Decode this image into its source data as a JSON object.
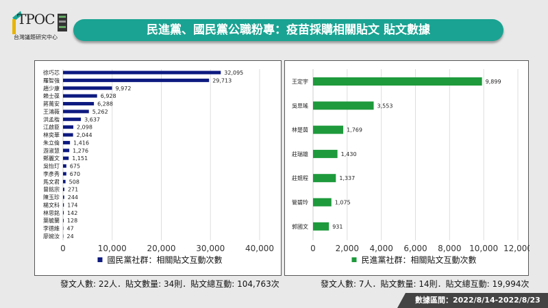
{
  "header": {
    "logo_text": "TPOC",
    "logo_sub": "台灣議題研究中心",
    "title": "民進黨、國民黨公職粉專：疫苗採購相關貼文 貼文數據"
  },
  "chart_data": [
    {
      "type": "bar",
      "orientation": "horizontal",
      "legend": "國民黨社群：相關貼文互動次數",
      "color": "#0d1a80",
      "xlim": [
        0,
        40000
      ],
      "xticks": [
        0,
        10000,
        20000,
        30000,
        40000
      ],
      "xtick_labels": [
        "0",
        "10,000",
        "20,000",
        "30,000",
        "40,000"
      ],
      "grid": true,
      "legend_position": "bottom",
      "categories": [
        "徐巧芯",
        "羅智強",
        "趙少康",
        "賴士葆",
        "蔣萬安",
        "王鴻薇",
        "洪孟楷",
        "江啟臣",
        "林奕華",
        "朱立倫",
        "游淑慧",
        "鄭麗文",
        "吳怡玎",
        "李彥秀",
        "馬文君",
        "曾銘宗",
        "陳玉珍",
        "楊文科",
        "林思銘",
        "葉毓蘭",
        "李德維",
        "廖婉汝"
      ],
      "values": [
        32095,
        29713,
        9972,
        6928,
        6288,
        5262,
        3637,
        2098,
        2044,
        1416,
        1276,
        1151,
        675,
        670,
        508,
        271,
        244,
        174,
        142,
        128,
        47,
        24
      ],
      "value_labels": [
        "32,095",
        "29,713",
        "9,972",
        "6,928",
        "6,288",
        "5,262",
        "3,637",
        "2,098",
        "2,044",
        "1,416",
        "1,276",
        "1,151",
        "675",
        "670",
        "508",
        "271",
        "244",
        "174",
        "142",
        "128",
        "47",
        "24"
      ]
    },
    {
      "type": "bar",
      "orientation": "horizontal",
      "legend": "民進黨社群：相關貼文互動次數",
      "color": "#1e9a3c",
      "xlim": [
        0,
        12000
      ],
      "xticks": [
        0,
        2000,
        4000,
        6000,
        8000,
        10000,
        12000
      ],
      "xtick_labels": [
        "0",
        "2,000",
        "4,000",
        "6,000",
        "8,000",
        "10,000",
        "12,000"
      ],
      "grid": true,
      "legend_position": "bottom",
      "categories": [
        "王定宇",
        "吳思瑤",
        "林楚茵",
        "莊瑞雄",
        "莊競程",
        "管碧玲",
        "郭國文"
      ],
      "values": [
        9899,
        3553,
        1769,
        1430,
        1337,
        1075,
        931
      ],
      "value_labels": [
        "9,899",
        "3,553",
        "1,769",
        "1,430",
        "1,337",
        "1,075",
        "931"
      ]
    }
  ],
  "summary": {
    "left": "發文人數: 22人．貼文數量: 34則．貼文總互動: 104,763次",
    "right": "發文人數: 7人．貼文數量: 14則．貼文總互動: 19,994次"
  },
  "footer": "數據區間：2022/8/14-2022/8/23"
}
